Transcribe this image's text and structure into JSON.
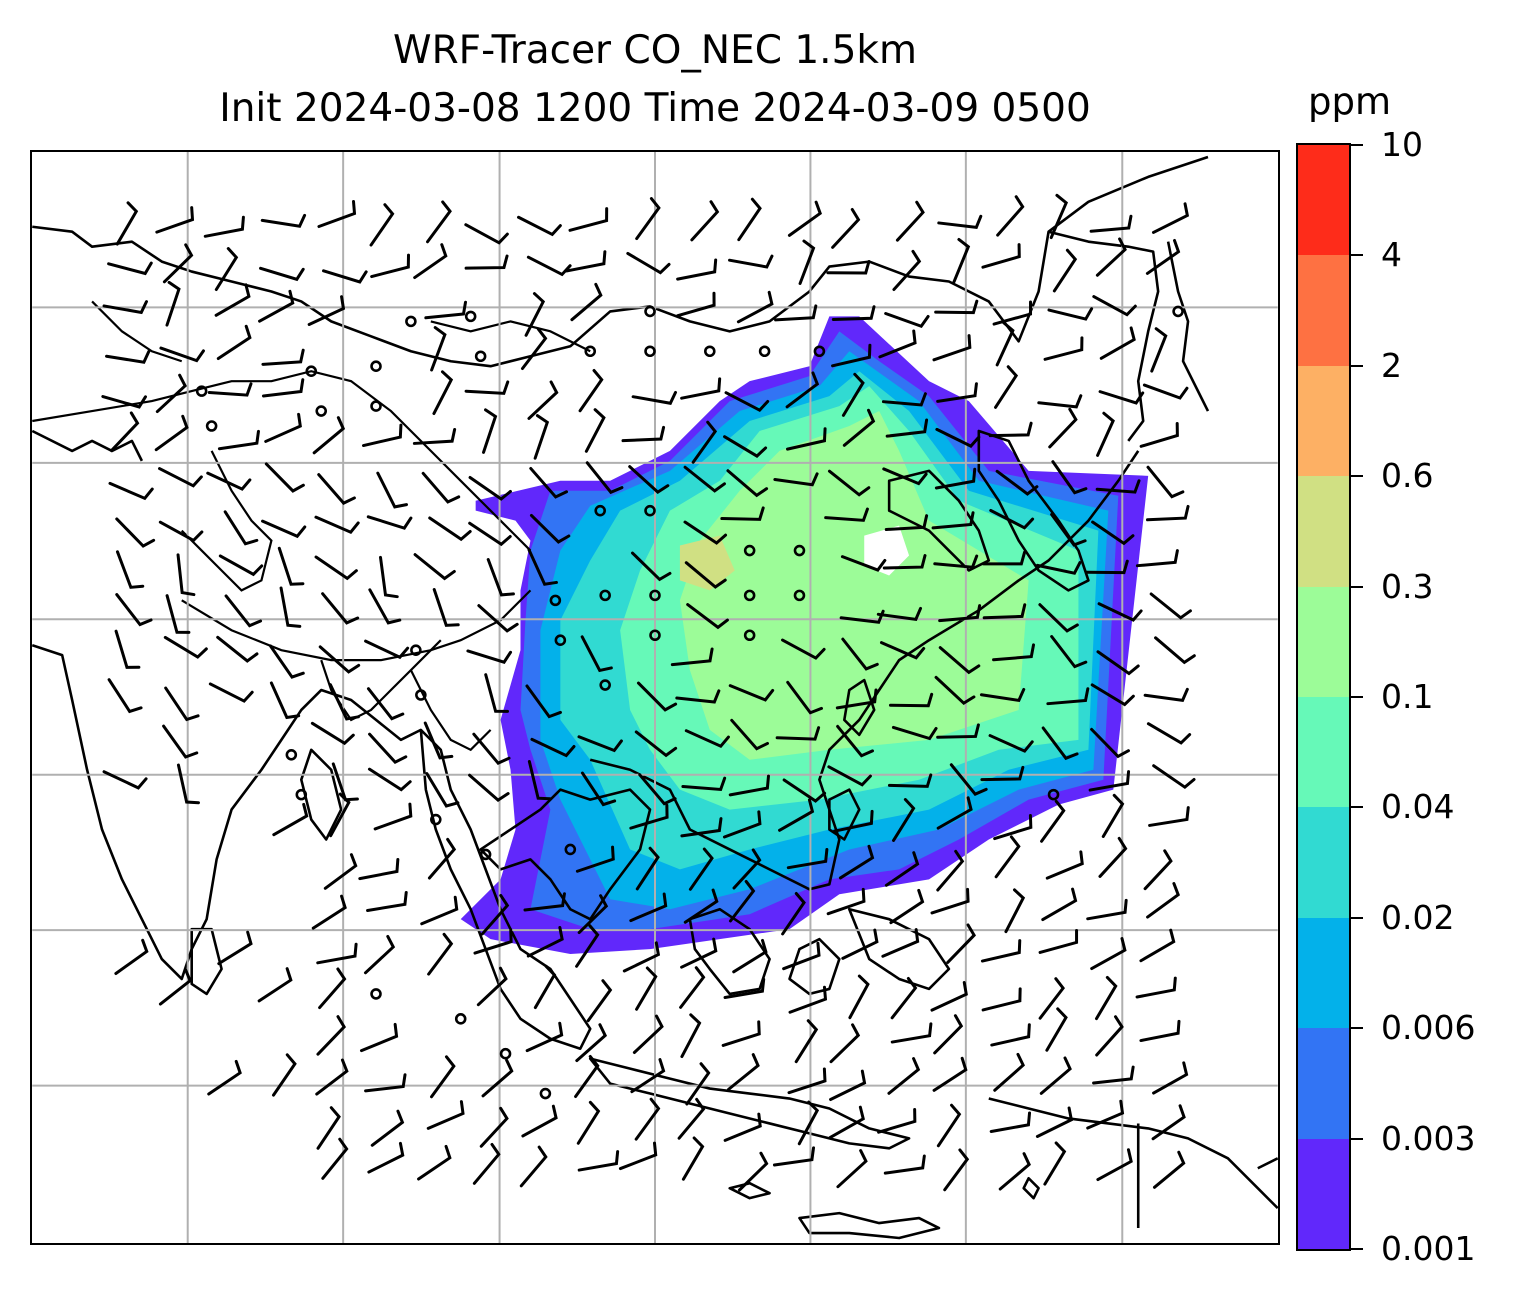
{
  "title": {
    "line1": "WRF-Tracer CO_NEC 1.5km",
    "line2": "Init 2024-03-08 1200 Time 2024-03-09 0500"
  },
  "colorbar": {
    "unit": "ppm",
    "levels": [
      "0.001",
      "0.003",
      "0.006",
      "0.02",
      "0.04",
      "0.1",
      "0.3",
      "0.6",
      "2",
      "4",
      "10"
    ],
    "colors": [
      "#6128fb",
      "#3274f4",
      "#03b1ea",
      "#31dad2",
      "#66f9b8",
      "#9cfc98",
      "#d0e083",
      "#fdb064",
      "#fe7142",
      "#fe2c1a"
    ]
  },
  "map": {
    "gridlines": true,
    "features": [
      "coastlines",
      "country-borders",
      "CO tracer concentration",
      "wind barbs",
      "calm-wind circles"
    ]
  }
}
